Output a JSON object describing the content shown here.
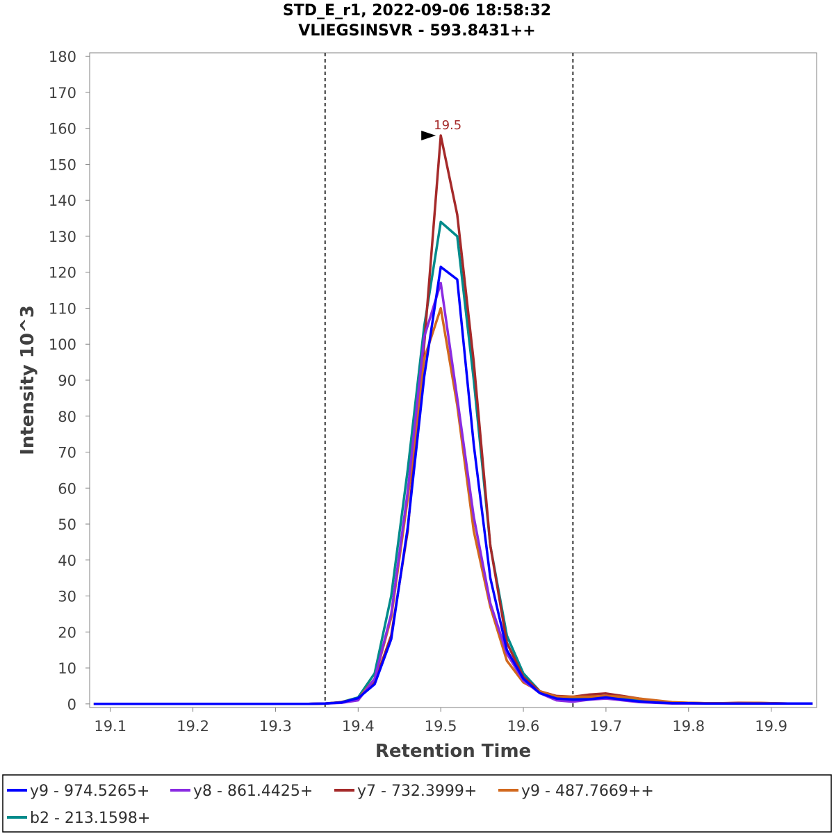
{
  "chart_data": {
    "type": "line",
    "title": "STD_E_r1, 2022-09-06 18:58:32",
    "subtitle": "VLIEGSINSVR - 593.8431++",
    "xlabel": "Retention Time",
    "ylabel": "Intensity 10^3",
    "xlim": [
      19.075,
      19.955
    ],
    "ylim": [
      -1,
      181
    ],
    "xticks": [
      19.1,
      19.2,
      19.3,
      19.4,
      19.5,
      19.6,
      19.7,
      19.8,
      19.9
    ],
    "yticks": [
      0,
      10,
      20,
      30,
      40,
      50,
      60,
      70,
      80,
      90,
      100,
      110,
      120,
      130,
      140,
      150,
      160,
      170,
      180
    ],
    "boundaries": [
      19.36,
      19.66
    ],
    "peak_annotation": {
      "x": 19.5,
      "y": 158,
      "label": "19.5",
      "color": "#a52a2a"
    },
    "legend_position": "bottom",
    "x": [
      19.08,
      19.1,
      19.12,
      19.14,
      19.16,
      19.18,
      19.2,
      19.22,
      19.24,
      19.26,
      19.28,
      19.3,
      19.32,
      19.34,
      19.36,
      19.38,
      19.4,
      19.42,
      19.44,
      19.46,
      19.48,
      19.5,
      19.52,
      19.54,
      19.56,
      19.58,
      19.6,
      19.62,
      19.64,
      19.66,
      19.68,
      19.7,
      19.72,
      19.74,
      19.76,
      19.78,
      19.8,
      19.82,
      19.84,
      19.86,
      19.88,
      19.9,
      19.92,
      19.95
    ],
    "series": [
      {
        "name": "b2 - 213.1598+",
        "color": "#008b8b",
        "values": [
          0,
          0,
          0,
          0,
          0,
          0,
          0,
          0,
          0,
          0,
          0,
          0,
          0,
          0,
          0.1,
          0.5,
          1.8,
          8.5,
          30,
          65,
          105,
          134,
          130,
          90,
          44,
          19,
          8.5,
          3.5,
          2,
          1.5,
          1.5,
          2,
          1.5,
          1,
          0.5,
          0.3,
          0.2,
          0.1,
          0.1,
          0.1,
          0.1,
          0.1,
          0.1,
          0.1
        ]
      },
      {
        "name": "y7 - 732.3999+",
        "color": "#a52a2a",
        "values": [
          0,
          0,
          0,
          0,
          0,
          0,
          0,
          0,
          0,
          0,
          0,
          0,
          0,
          0,
          0.1,
          0.5,
          1.5,
          6,
          19,
          48,
          100,
          158,
          136,
          95,
          44,
          17,
          7.5,
          3.5,
          2.2,
          2,
          2.6,
          2.9,
          2.2,
          1.5,
          0.8,
          0.4,
          0.3,
          0.2,
          0.2,
          0.3,
          0.3,
          0.2,
          0.1,
          0.1
        ]
      },
      {
        "name": "y9 - 487.7669++",
        "color": "#d2691e",
        "values": [
          0,
          0,
          0,
          0,
          0,
          0,
          0,
          0,
          0,
          0,
          0,
          0,
          0,
          0,
          0.1,
          0.4,
          1.5,
          7,
          24,
          57,
          96,
          110,
          83,
          48,
          27,
          12,
          6,
          3.5,
          2,
          2,
          2,
          2.2,
          2,
          1.5,
          1,
          0.5,
          0.3,
          0.2,
          0.2,
          0.2,
          0.3,
          0.2,
          0.1,
          0.1
        ]
      },
      {
        "name": "y8 - 861.4425+",
        "color": "#8a2be2",
        "values": [
          0,
          0,
          0,
          0,
          0,
          0,
          0,
          0,
          0,
          0,
          0,
          0,
          0,
          0,
          0.1,
          0.3,
          1,
          7,
          25,
          59,
          102,
          117,
          85,
          52,
          28,
          14,
          6.5,
          3,
          1,
          0.6,
          1.2,
          1.5,
          1,
          0.5,
          0.3,
          0.1,
          0.1,
          0.1,
          0.1,
          0.1,
          0.1,
          0.1,
          0.1,
          0.1
        ]
      },
      {
        "name": "y9 - 974.5265+",
        "color": "#0000ff",
        "values": [
          0,
          0,
          0,
          0,
          0,
          0,
          0,
          0,
          0,
          0,
          0,
          0,
          0,
          0,
          0.1,
          0.4,
          1.6,
          5.5,
          18,
          49,
          91,
          121.5,
          118,
          72,
          35,
          15,
          7,
          3,
          1.5,
          1.2,
          1.3,
          1.8,
          1.2,
          0.7,
          0.4,
          0.2,
          0.2,
          0.1,
          0.1,
          0.1,
          0.1,
          0.1,
          0.1,
          0.1
        ]
      }
    ],
    "legend": [
      {
        "name": "y9 - 974.5265+",
        "color": "#0000ff"
      },
      {
        "name": "y8 - 861.4425+",
        "color": "#8a2be2"
      },
      {
        "name": "y7 - 732.3999+",
        "color": "#a52a2a"
      },
      {
        "name": "y9 - 487.7669++",
        "color": "#d2691e"
      },
      {
        "name": "b2 - 213.1598+",
        "color": "#008b8b"
      }
    ]
  }
}
